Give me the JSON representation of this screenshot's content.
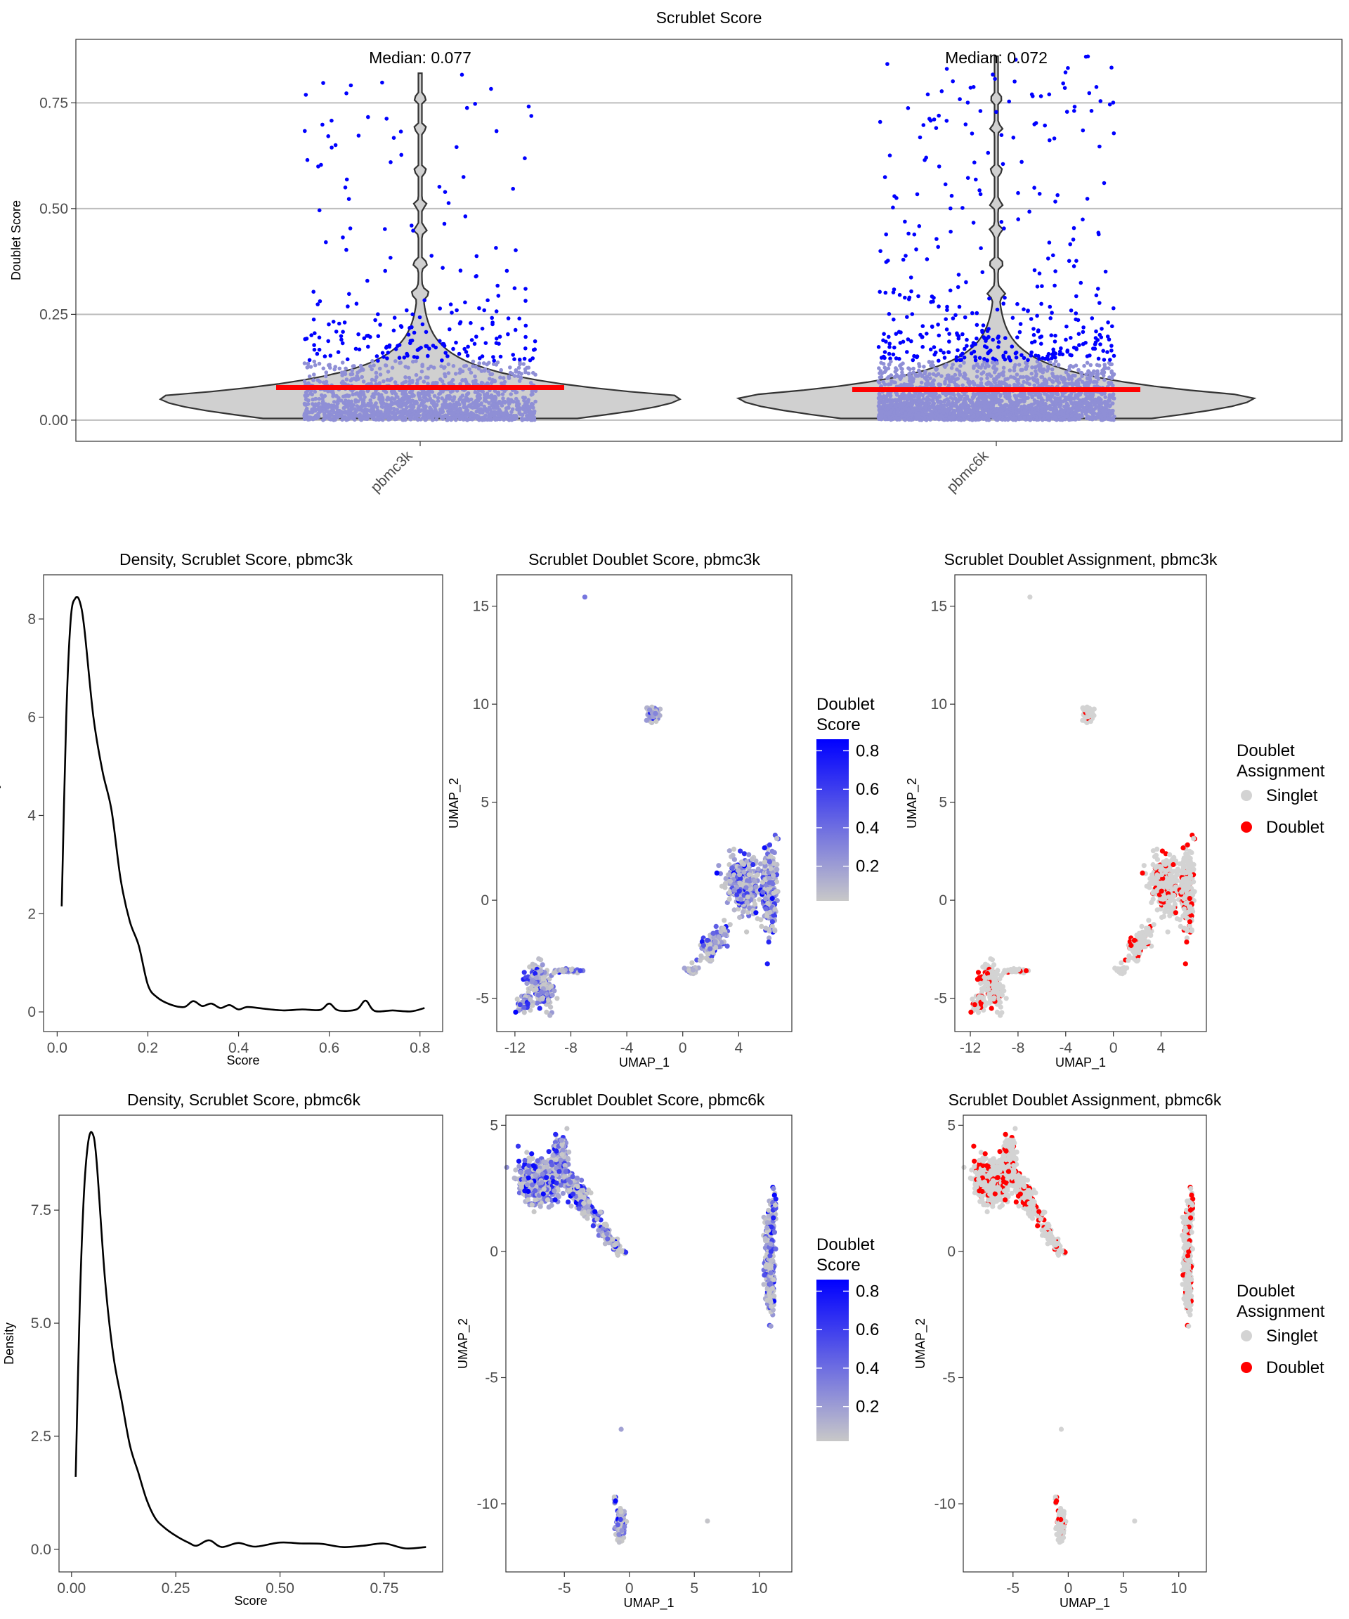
{
  "chart_data": [
    {
      "id": "violin",
      "type": "violin",
      "title": "Scrublet Score",
      "xlabel": "",
      "ylabel": "Doublet Score",
      "categories": [
        "pbmc3k",
        "pbmc6k"
      ],
      "medians": [
        0.077,
        0.072
      ],
      "annotations": [
        "Median: 0.077",
        "Median: 0.072"
      ],
      "ylim": [
        -0.05,
        0.9
      ],
      "yticks": [
        0.0,
        0.25,
        0.5,
        0.75
      ],
      "ytick_labels": [
        "0.00",
        "0.25",
        "0.50",
        "0.75"
      ],
      "grid": "horizontal",
      "colors": {
        "violin_fill": "#d0d0d0",
        "point_low": "#8f8fd6",
        "point_high": "#0000ff",
        "median_line": "#ff0000"
      }
    },
    {
      "id": "density3k",
      "type": "line",
      "title": "Density, Scrublet Score, pbmc3k",
      "xlabel": "Score",
      "ylabel": "Density",
      "xlim": [
        -0.03,
        0.85
      ],
      "ylim": [
        -0.4,
        8.9
      ],
      "xticks": [
        0.0,
        0.2,
        0.4,
        0.6,
        0.8
      ],
      "xtick_labels": [
        "0.0",
        "0.2",
        "0.4",
        "0.6",
        "0.8"
      ],
      "yticks": [
        0,
        2,
        4,
        6,
        8
      ],
      "ytick_labels": [
        "0",
        "2",
        "4",
        "6",
        "8"
      ],
      "x": [
        0.01,
        0.02,
        0.03,
        0.04,
        0.05,
        0.06,
        0.08,
        0.1,
        0.12,
        0.14,
        0.16,
        0.18,
        0.2,
        0.22,
        0.25,
        0.28,
        0.3,
        0.32,
        0.34,
        0.36,
        0.38,
        0.4,
        0.42,
        0.46,
        0.5,
        0.54,
        0.58,
        0.6,
        0.62,
        0.66,
        0.68,
        0.7,
        0.74,
        0.78,
        0.81
      ],
      "y": [
        2.15,
        6.0,
        8.0,
        8.42,
        8.35,
        7.8,
        6.0,
        4.9,
        4.1,
        2.7,
        1.85,
        1.35,
        0.55,
        0.3,
        0.15,
        0.1,
        0.22,
        0.12,
        0.17,
        0.08,
        0.14,
        0.05,
        0.1,
        0.06,
        0.03,
        0.05,
        0.04,
        0.17,
        0.03,
        0.05,
        0.23,
        0.02,
        0.03,
        0.01,
        0.08
      ]
    },
    {
      "id": "density6k",
      "type": "line",
      "title": "Density, Scrublet Score, pbmc6k",
      "xlabel": "Score",
      "ylabel": "Density",
      "xlim": [
        -0.03,
        0.89
      ],
      "ylim": [
        -0.5,
        9.6
      ],
      "xticks": [
        0.0,
        0.25,
        0.5,
        0.75
      ],
      "xtick_labels": [
        "0.00",
        "0.25",
        "0.50",
        "0.75"
      ],
      "yticks": [
        0,
        2.5,
        5.0,
        7.5
      ],
      "ytick_labels": [
        "0.0",
        "2.5",
        "5.0",
        "7.5"
      ],
      "x": [
        0.01,
        0.02,
        0.03,
        0.04,
        0.05,
        0.06,
        0.08,
        0.1,
        0.12,
        0.14,
        0.16,
        0.18,
        0.2,
        0.22,
        0.25,
        0.28,
        0.3,
        0.33,
        0.36,
        0.4,
        0.44,
        0.5,
        0.55,
        0.6,
        0.65,
        0.7,
        0.75,
        0.8,
        0.85
      ],
      "y": [
        1.6,
        5.5,
        7.9,
        9.0,
        9.2,
        8.6,
        6.0,
        4.3,
        3.3,
        2.3,
        1.7,
        1.1,
        0.7,
        0.5,
        0.3,
        0.15,
        0.08,
        0.2,
        0.05,
        0.14,
        0.06,
        0.15,
        0.13,
        0.12,
        0.05,
        0.08,
        0.13,
        0.02,
        0.05
      ]
    },
    {
      "id": "umap_score_3k",
      "type": "scatter",
      "title": "Scrublet Doublet Score, pbmc3k",
      "xlabel": "UMAP_1",
      "ylabel": "UMAP_2",
      "xlim": [
        -13.3,
        7.8
      ],
      "ylim": [
        -6.7,
        16.6
      ],
      "xticks": [
        -12,
        -8,
        -4,
        0,
        4
      ],
      "xtick_labels": [
        "-12",
        "-8",
        "-4",
        "0",
        "4"
      ],
      "yticks": [
        -5,
        0,
        5,
        10,
        15
      ],
      "ytick_labels": [
        "-5",
        "0",
        "5",
        "10",
        "15"
      ],
      "legend": {
        "title_lines": [
          "Doublet",
          "Score"
        ],
        "ticks": [
          "0.2",
          "0.4",
          "0.6",
          "0.8"
        ],
        "low": "#c8c8c8",
        "high": "#0000ff",
        "position": "right"
      }
    },
    {
      "id": "umap_assign_3k",
      "type": "scatter",
      "title": "Scrublet Doublet Assignment, pbmc3k",
      "xlabel": "UMAP_1",
      "ylabel": "UMAP_2",
      "xlim": [
        -13.3,
        7.8
      ],
      "ylim": [
        -6.7,
        16.6
      ],
      "xticks": [
        -12,
        -8,
        -4,
        0,
        4
      ],
      "xtick_labels": [
        "-12",
        "-8",
        "-4",
        "0",
        "4"
      ],
      "yticks": [
        -5,
        0,
        5,
        10,
        15
      ],
      "ytick_labels": [
        "-5",
        "0",
        "5",
        "10",
        "15"
      ],
      "legend": {
        "title_lines": [
          "Doublet",
          "Assignment"
        ],
        "items": [
          {
            "label": "Singlet",
            "color": "#d3d3d3"
          },
          {
            "label": "Doublet",
            "color": "#ff0000"
          }
        ],
        "position": "right"
      }
    },
    {
      "id": "umap_score_6k",
      "type": "scatter",
      "title": "Scrublet Doublet Score, pbmc6k",
      "xlabel": "UMAP_1",
      "ylabel": "UMAP_2",
      "xlim": [
        -9.5,
        12.5
      ],
      "ylim": [
        -12.7,
        5.4
      ],
      "xticks": [
        -5,
        0,
        5,
        10
      ],
      "xtick_labels": [
        "-5",
        "0",
        "5",
        "10"
      ],
      "yticks": [
        -10,
        -5,
        0,
        5
      ],
      "ytick_labels": [
        "-10",
        "-5",
        "0",
        "5"
      ],
      "legend": {
        "title_lines": [
          "Doublet",
          "Score"
        ],
        "ticks": [
          "0.2",
          "0.4",
          "0.6",
          "0.8"
        ],
        "low": "#c8c8c8",
        "high": "#0000ff",
        "position": "right"
      }
    },
    {
      "id": "umap_assign_6k",
      "type": "scatter",
      "title": "Scrublet Doublet Assignment, pbmc6k",
      "xlabel": "UMAP_1",
      "ylabel": "UMAP_2",
      "xlim": [
        -9.5,
        12.5
      ],
      "ylim": [
        -12.7,
        5.4
      ],
      "xticks": [
        -5,
        0,
        5,
        10
      ],
      "xtick_labels": [
        "-5",
        "0",
        "5",
        "10"
      ],
      "yticks": [
        -10,
        -5,
        0,
        5
      ],
      "ytick_labels": [
        "-10",
        "-5",
        "0",
        "5"
      ],
      "legend": {
        "title_lines": [
          "Doublet",
          "Assignment"
        ],
        "items": [
          {
            "label": "Singlet",
            "color": "#d3d3d3"
          },
          {
            "label": "Doublet",
            "color": "#ff0000"
          }
        ],
        "position": "right"
      }
    }
  ]
}
